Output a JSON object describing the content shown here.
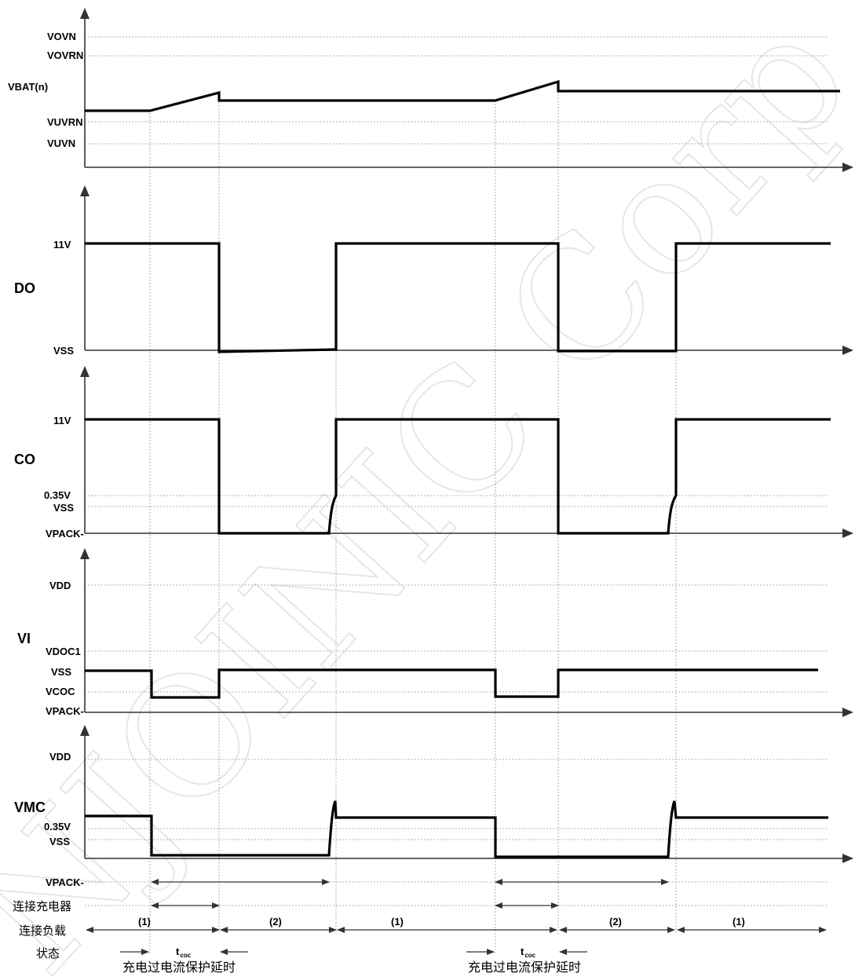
{
  "watermark": "NJOINIC Corp.",
  "panels": {
    "vbat": {
      "name": "VBAT(n)",
      "levels": {
        "ovn": "VOVN",
        "ovrn": "VOVRN",
        "uvrn": "VUVRN",
        "uvn": "VUVN"
      }
    },
    "do": {
      "name": "DO",
      "levels": {
        "high": "11V",
        "low": "VSS"
      }
    },
    "co": {
      "name": "CO",
      "levels": {
        "high": "11V",
        "v035": "0.35V",
        "vss": "VSS",
        "vpack": "VPACK-"
      }
    },
    "vi": {
      "name": "VI",
      "levels": {
        "vdd": "VDD",
        "vdoc1": "VDOC1",
        "vss": "VSS",
        "vcoc": "VCOC",
        "vpack": "VPACK-"
      }
    },
    "vmc": {
      "name": "VMC",
      "levels": {
        "vdd": "VDD",
        "v035": "0.35V",
        "vss": "VSS",
        "vpack": "VPACK-"
      }
    }
  },
  "rows": {
    "charger": "连接充电器",
    "load": "连接负载",
    "state": "状态"
  },
  "states": [
    "(1)",
    "(2)",
    "(1)",
    "(2)",
    "(1)"
  ],
  "tcoc": {
    "main": "t",
    "sub": "coc"
  },
  "delay_caption": "充电过电流保护延时"
}
